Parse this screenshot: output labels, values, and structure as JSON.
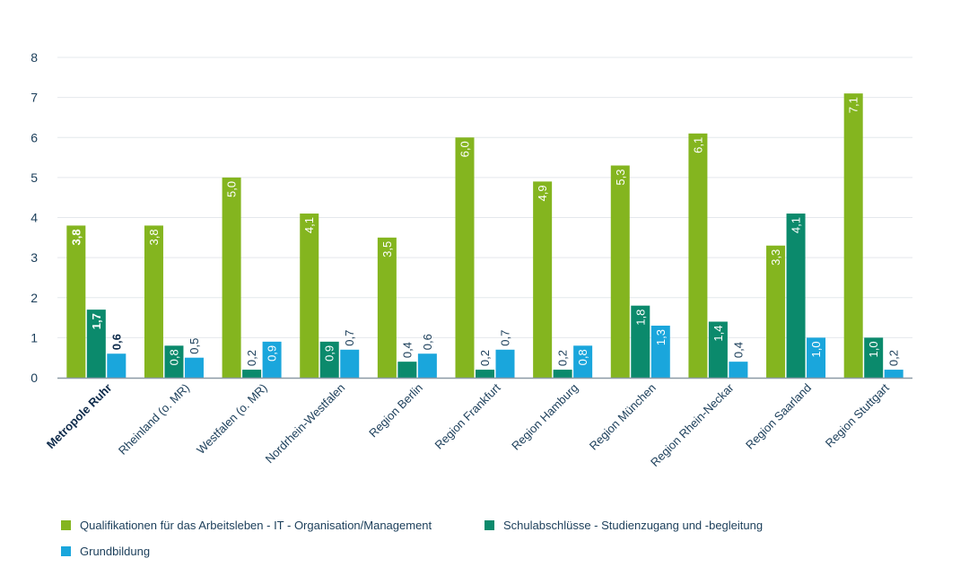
{
  "chart_data": {
    "type": "bar",
    "categories": [
      "Metropole Ruhr",
      "Rheinland (o. MR)",
      "Westfalen (o. MR)",
      "Nordrhein-Westfalen",
      "Region Berlin",
      "Region Frankfurt",
      "Region Hamburg",
      "Region München",
      "Region Rhein-Neckar",
      "Region Saarland",
      "Region Stuttgart"
    ],
    "highlight_category": "Metropole Ruhr",
    "series": [
      {
        "name": "Qualifikationen für das Arbeitsleben - IT - Organisation/Management",
        "color": "#84b51f",
        "values": [
          3.8,
          3.8,
          5.0,
          4.1,
          3.5,
          6.0,
          4.9,
          5.3,
          6.1,
          3.3,
          7.1
        ],
        "labels": [
          "3,8",
          "3,8",
          "5,0",
          "4,1",
          "3,5",
          "6,0",
          "4,9",
          "5,3",
          "6,1",
          "3,3",
          "7,1"
        ]
      },
      {
        "name": "Schulabschlüsse - Studienzugang und -begleitung",
        "color": "#0b8a6c",
        "values": [
          1.7,
          0.8,
          0.2,
          0.9,
          0.4,
          0.2,
          0.2,
          1.8,
          1.4,
          4.1,
          1.0
        ],
        "labels": [
          "1,7",
          "0,8",
          "0,2",
          "0,9",
          "0,4",
          "0,2",
          "0,2",
          "1,8",
          "1,4",
          "4,1",
          "1,0"
        ]
      },
      {
        "name": "Grundbildung",
        "color": "#1aa6dc",
        "values": [
          0.6,
          0.5,
          0.9,
          0.7,
          0.6,
          0.7,
          0.8,
          1.3,
          0.4,
          1.0,
          0.2
        ],
        "labels": [
          "0,6",
          "0,5",
          "0,9",
          "0,7",
          "0,6",
          "0,7",
          "0,8",
          "1,3",
          "0,4",
          "1,0",
          "0,2"
        ]
      }
    ],
    "y_ticks": [
      "0",
      "1",
      "2",
      "3",
      "4",
      "5",
      "6",
      "7",
      "8"
    ],
    "ylim": [
      0,
      8
    ],
    "grid": true,
    "legend_position": "bottom-left",
    "colors": {
      "text": "#1b3e5a",
      "highlight_text": "#0d2a4a",
      "grid": "#e4e8ec",
      "baseline": "#8c9aa6"
    }
  }
}
